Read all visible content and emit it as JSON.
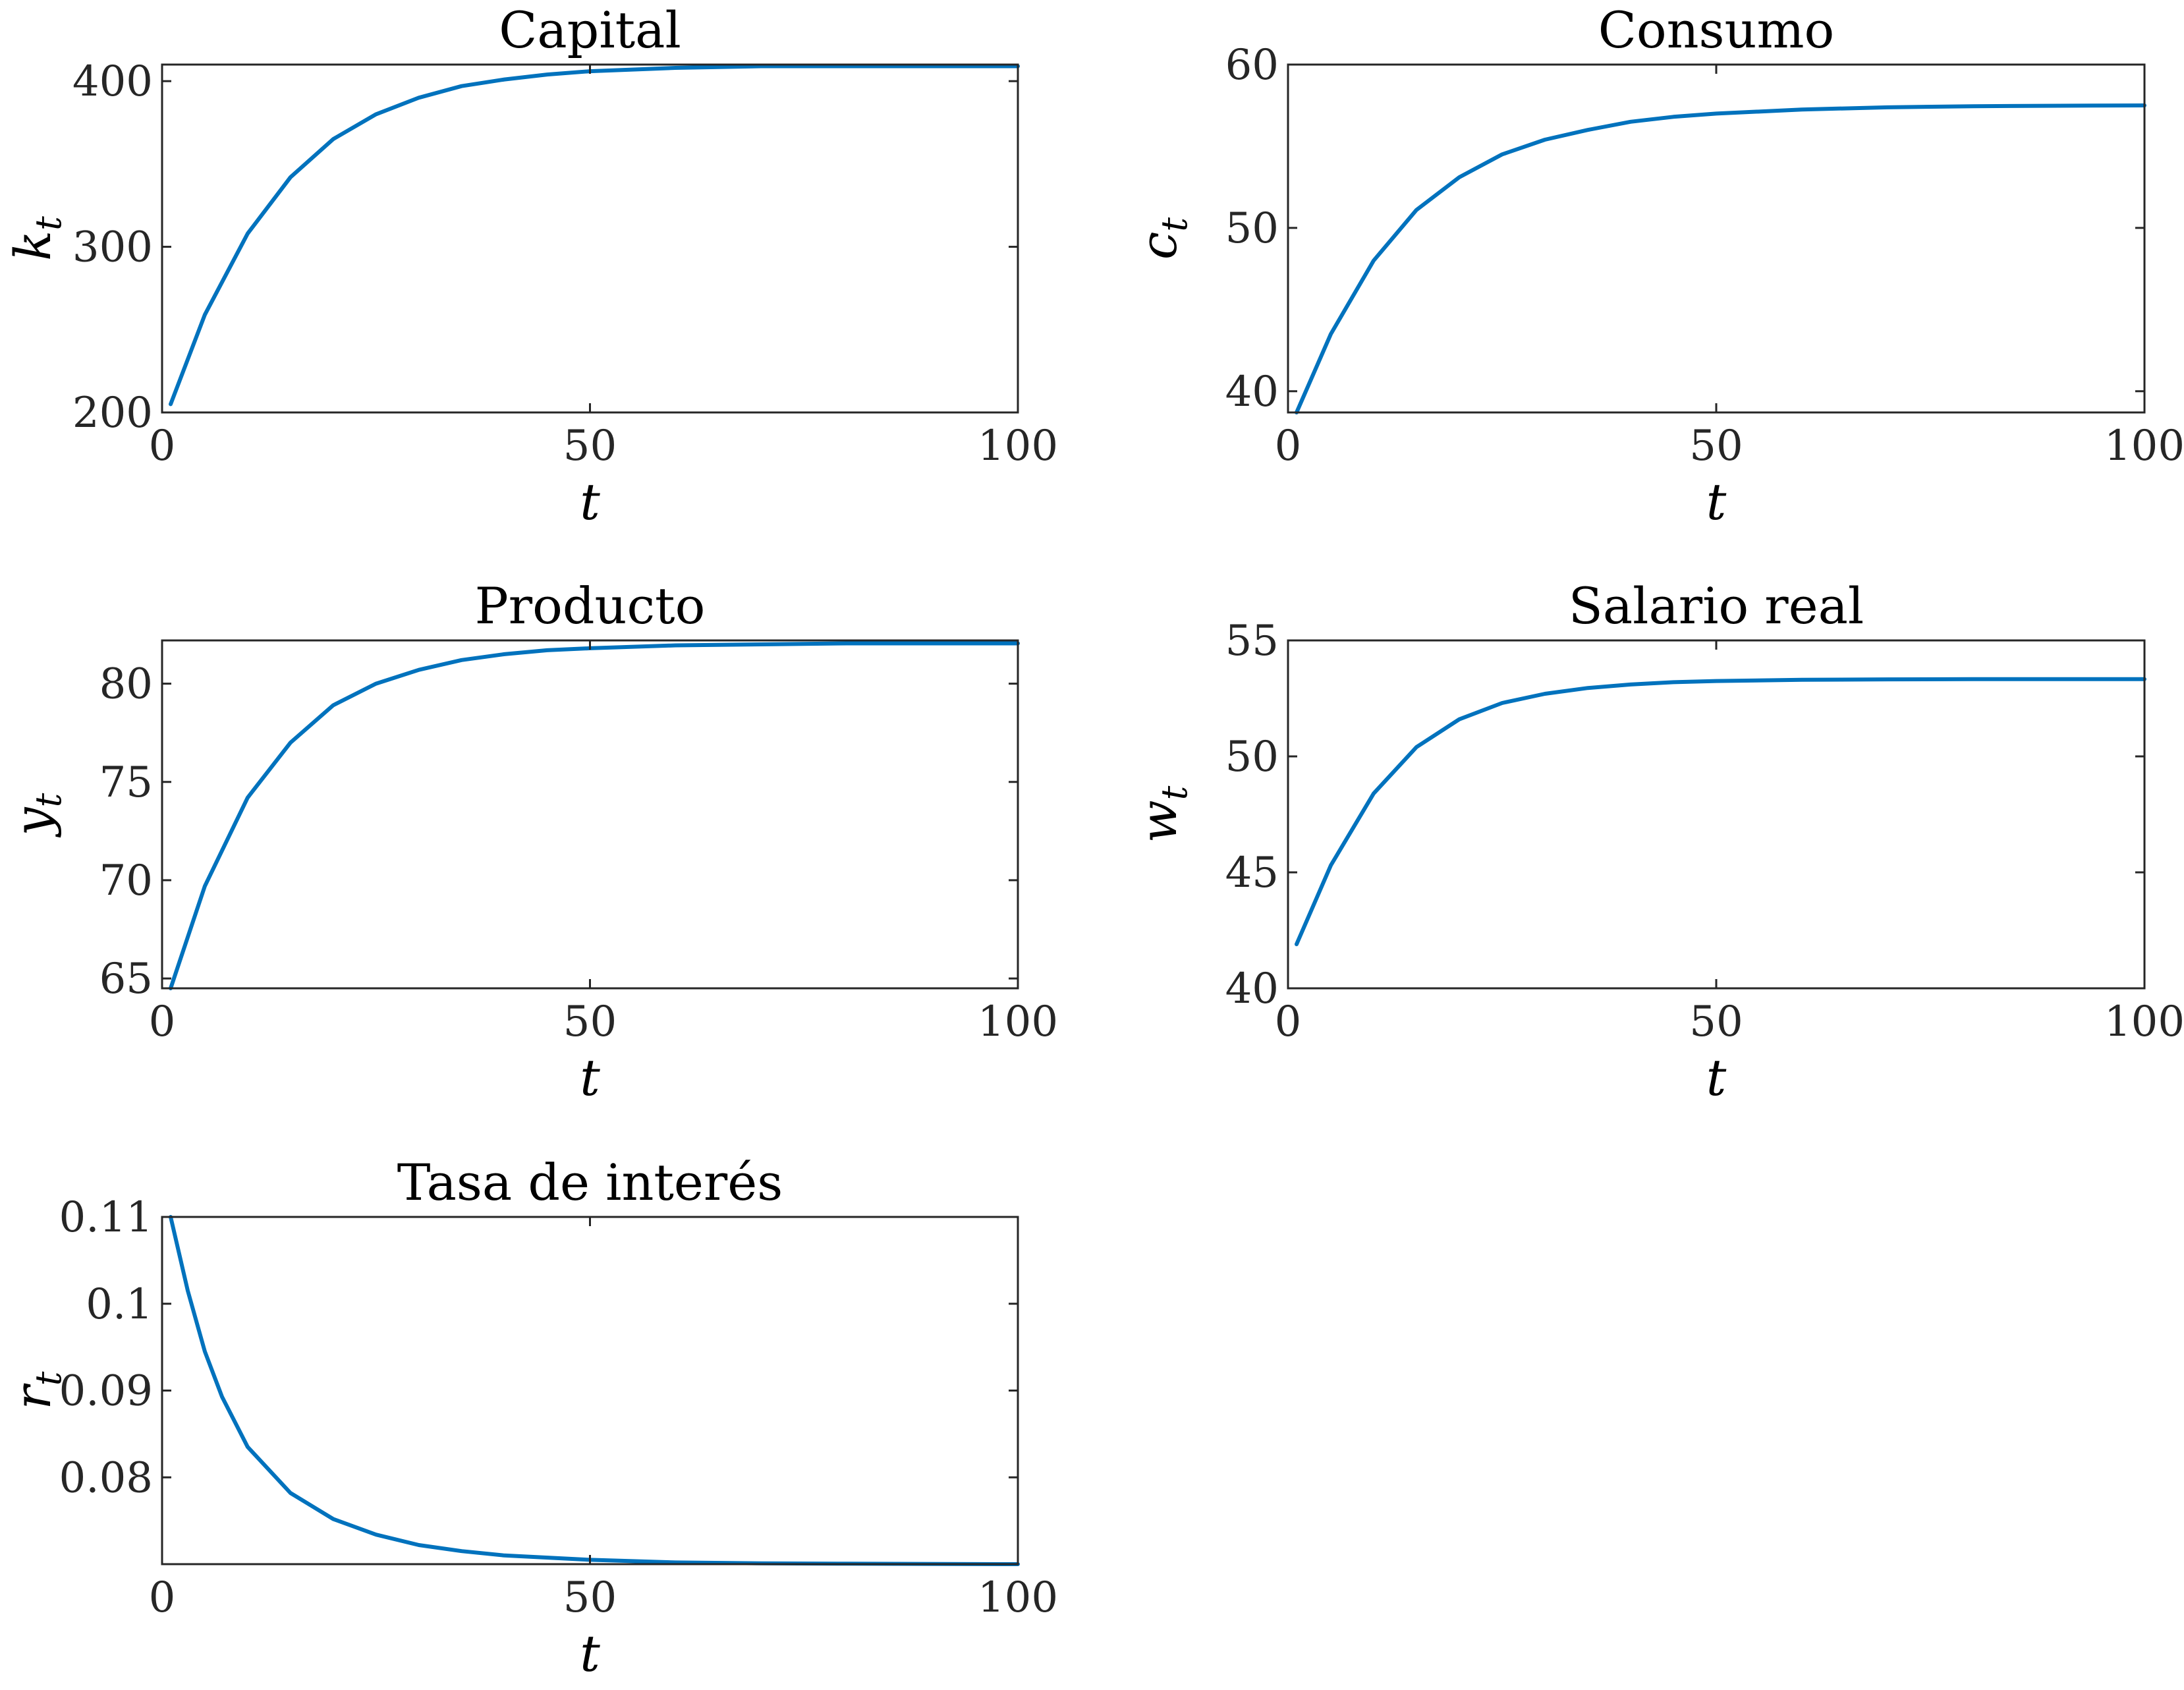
{
  "chart_data": [
    {
      "id": "capital",
      "type": "line",
      "title": "Capital",
      "xlabel": "t",
      "ylabel_base": "k",
      "ylabel_sub": "t",
      "xlim": [
        0,
        100
      ],
      "ylim": [
        200,
        410
      ],
      "xticks": [
        0,
        50,
        100
      ],
      "yticks": [
        200,
        300,
        400
      ],
      "ytick_labels": [
        "200",
        "300",
        "400"
      ],
      "series": [
        {
          "color": "#0072BD",
          "x": [
            1,
            5,
            10,
            15,
            20,
            25,
            30,
            35,
            40,
            45,
            50,
            60,
            70,
            80,
            90,
            100
          ],
          "y": [
            205,
            259,
            308,
            342,
            365,
            380,
            390,
            397,
            401,
            404,
            406,
            408,
            409,
            409,
            409,
            409
          ]
        }
      ]
    },
    {
      "id": "consumo",
      "type": "line",
      "title": "Consumo",
      "xlabel": "t",
      "ylabel_base": "c",
      "ylabel_sub": "t",
      "xlim": [
        0,
        100
      ],
      "ylim": [
        38.7,
        60
      ],
      "xticks": [
        0,
        50,
        100
      ],
      "yticks": [
        40,
        50,
        60
      ],
      "ytick_labels": [
        "40",
        "50",
        "60"
      ],
      "series": [
        {
          "color": "#0072BD",
          "x": [
            1,
            5,
            10,
            15,
            20,
            25,
            30,
            35,
            40,
            45,
            50,
            60,
            70,
            80,
            90,
            100
          ],
          "y": [
            38.7,
            43.5,
            48.0,
            51.1,
            53.1,
            54.5,
            55.4,
            56.0,
            56.5,
            56.8,
            57.0,
            57.25,
            57.38,
            57.45,
            57.48,
            57.5
          ]
        }
      ]
    },
    {
      "id": "producto",
      "type": "line",
      "title": "Producto",
      "xlabel": "t",
      "ylabel_base": "y",
      "ylabel_sub": "t",
      "xlim": [
        0,
        100
      ],
      "ylim": [
        64.5,
        82.2
      ],
      "xticks": [
        0,
        50,
        100
      ],
      "yticks": [
        65,
        70,
        75,
        80
      ],
      "ytick_labels": [
        "65",
        "70",
        "75",
        "80"
      ],
      "series": [
        {
          "color": "#0072BD",
          "x": [
            1,
            5,
            10,
            15,
            20,
            25,
            30,
            35,
            40,
            45,
            50,
            60,
            70,
            80,
            90,
            100
          ],
          "y": [
            64.5,
            69.7,
            74.2,
            77.0,
            78.9,
            80.0,
            80.7,
            81.2,
            81.5,
            81.7,
            81.8,
            81.95,
            82.0,
            82.05,
            82.05,
            82.05
          ]
        }
      ]
    },
    {
      "id": "salario",
      "type": "line",
      "title": "Salario real",
      "xlabel": "t",
      "ylabel_base": "w",
      "ylabel_sub": "t",
      "xlim": [
        0,
        100
      ],
      "ylim": [
        40,
        55
      ],
      "xticks": [
        0,
        50,
        100
      ],
      "yticks": [
        40,
        45,
        50,
        55
      ],
      "ytick_labels": [
        "40",
        "45",
        "50",
        "55"
      ],
      "series": [
        {
          "color": "#0072BD",
          "x": [
            1,
            5,
            10,
            15,
            20,
            25,
            30,
            35,
            40,
            45,
            50,
            60,
            70,
            80,
            90,
            100
          ],
          "y": [
            41.9,
            45.3,
            48.4,
            50.4,
            51.6,
            52.3,
            52.7,
            52.95,
            53.1,
            53.2,
            53.25,
            53.3,
            53.32,
            53.33,
            53.33,
            53.33
          ]
        }
      ]
    },
    {
      "id": "tasa",
      "type": "line",
      "title": "Tasa de interés",
      "xlabel": "t",
      "ylabel_base": "r",
      "ylabel_sub": "t",
      "xlim": [
        0,
        100
      ],
      "ylim": [
        0.07,
        0.11
      ],
      "xticks": [
        0,
        50,
        100
      ],
      "yticks": [
        0.08,
        0.09,
        0.1,
        0.11
      ],
      "ytick_labels": [
        "0.08",
        "0.09",
        "0.1",
        "0.11"
      ],
      "series": [
        {
          "color": "#0072BD",
          "x": [
            1,
            3,
            5,
            7,
            10,
            15,
            20,
            25,
            30,
            35,
            40,
            50,
            60,
            70,
            80,
            100
          ],
          "y": [
            0.11,
            0.1015,
            0.0945,
            0.0893,
            0.0835,
            0.0782,
            0.0752,
            0.0734,
            0.0722,
            0.0715,
            0.071,
            0.0705,
            0.0702,
            0.0701,
            0.07005,
            0.07
          ]
        }
      ]
    }
  ]
}
